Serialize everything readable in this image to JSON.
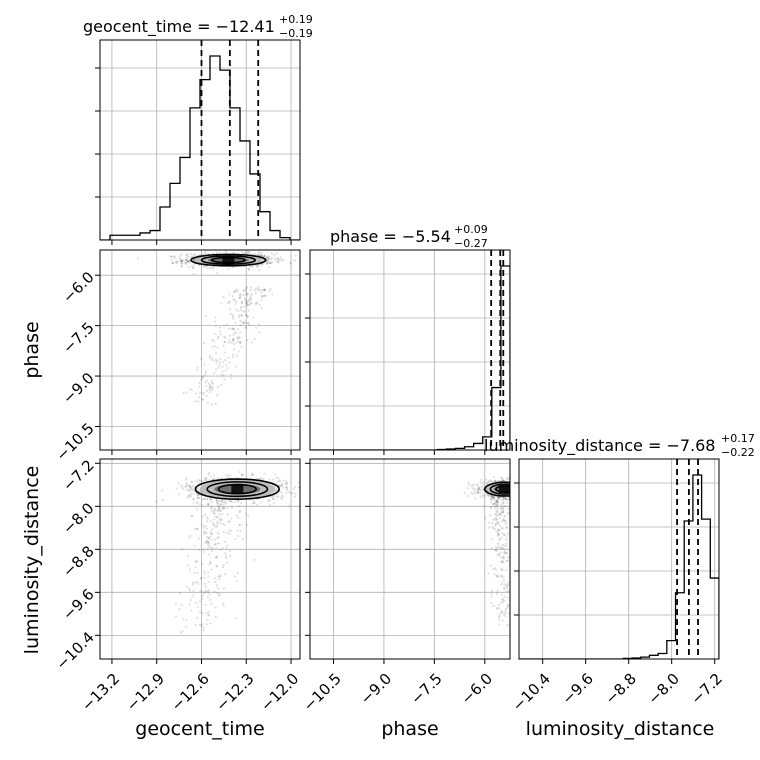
{
  "chart_data": {
    "type": "corner",
    "colors": {
      "line": "#000000",
      "grid": "#b0b0b0",
      "scatter": "#000000",
      "background": "#ffffff"
    },
    "grid": true,
    "parameters": [
      {
        "name": "geocent_time",
        "label": "geocent_time",
        "range": [
          -13.28,
          -11.94
        ],
        "ticks": [
          -13.2,
          -12.9,
          -12.6,
          -12.3,
          -12.0
        ],
        "tick_labels": [
          "−13.2",
          "−12.9",
          "−12.6",
          "−12.3",
          "−12.0"
        ]
      },
      {
        "name": "phase",
        "label": "phase",
        "range": [
          -11.2,
          -5.25
        ],
        "ticks": [
          -10.5,
          -9.0,
          -7.5,
          -6.0
        ],
        "tick_labels": [
          "−10.5",
          "−9.0",
          "−7.5",
          "−6.0"
        ]
      },
      {
        "name": "luminosity_distance",
        "label": "luminosity_distance",
        "range": [
          -10.84,
          -7.12
        ],
        "ticks": [
          -10.4,
          -9.6,
          -8.8,
          -8.0,
          -7.2
        ],
        "tick_labels": [
          "−10.4",
          "−9.6",
          "−8.8",
          "−8.0",
          "−7.2"
        ]
      }
    ],
    "titles": [
      {
        "param": "geocent_time",
        "prefix": "geocent_time = −12.41",
        "plus": "+0.19",
        "minus": "−0.19"
      },
      {
        "param": "phase",
        "prefix": "phase = −5.54",
        "plus": "+0.09",
        "minus": "−0.27"
      },
      {
        "param": "luminosity_distance",
        "prefix": "luminosity_distance = −7.68",
        "plus": "+0.17",
        "minus": "−0.22"
      }
    ],
    "histograms": [
      {
        "param": "geocent_time",
        "bins": [
          -13.28,
          -11.94
        ],
        "counts": [
          0,
          2,
          2,
          2,
          3,
          4,
          14,
          24,
          35,
          56,
          68,
          78,
          72,
          56,
          42,
          28,
          12,
          4,
          1,
          0
        ],
        "quantiles": [
          -12.6,
          -12.41,
          -12.22
        ]
      },
      {
        "param": "phase",
        "bins": [
          -11.2,
          -5.25
        ],
        "counts": [
          0,
          0,
          0,
          0,
          0,
          0,
          0,
          0,
          0,
          0,
          0,
          0,
          0,
          0,
          0.3,
          0.6,
          1,
          2,
          4,
          8,
          38,
          112
        ],
        "quantiles": [
          -5.81,
          -5.54,
          -5.45
        ]
      },
      {
        "param": "luminosity_distance",
        "bins": [
          -10.84,
          -7.12
        ],
        "counts": [
          0,
          0,
          0,
          0,
          0,
          0,
          0,
          0,
          0,
          0,
          0,
          0,
          0.3,
          0.5,
          1,
          2,
          3,
          10,
          36,
          75,
          100,
          76,
          44
        ],
        "quantiles": [
          -7.9,
          -7.68,
          -7.51
        ]
      }
    ],
    "pairs": [
      {
        "x": "geocent_time",
        "y": "phase",
        "mode": [
          -12.42,
          -5.55
        ],
        "scatter_spread": [
          0.25,
          0.2
        ],
        "tail": {
          "from": [
            -12.25,
            -6.4
          ],
          "to": [
            -12.6,
            -9.8
          ]
        }
      },
      {
        "x": "geocent_time",
        "y": "luminosity_distance",
        "mode": [
          -12.36,
          -7.68
        ],
        "scatter_spread": [
          0.28,
          0.22
        ],
        "tail": {
          "from": [
            -12.5,
            -8.0
          ],
          "to": [
            -12.6,
            -10.3
          ]
        }
      },
      {
        "x": "phase",
        "y": "luminosity_distance",
        "mode": [
          -5.4,
          -7.68
        ],
        "scatter_spread": [
          0.6,
          0.15
        ],
        "tail": {
          "from": [
            -5.6,
            -7.8
          ],
          "to": [
            -5.4,
            -10.2
          ]
        }
      }
    ]
  }
}
